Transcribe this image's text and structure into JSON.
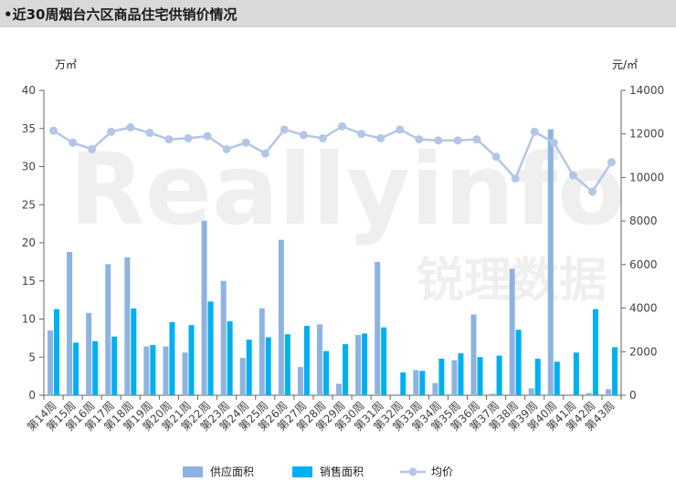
{
  "header": {
    "title": "•近30周烟台六区商品住宅供销价情况"
  },
  "watermark": {
    "text": "Reallyinfo",
    "subtext": "锐理数据"
  },
  "colors": {
    "supply": "#8db3e2",
    "sales": "#00b0f0",
    "price": "#b4c6e7",
    "axis": "#666666",
    "title_bg": "#d9d9d9"
  },
  "chart_data": {
    "type": "bar",
    "title": "",
    "categories": [
      "第14周",
      "第15周",
      "第16周",
      "第17周",
      "第18周",
      "第19周",
      "第20周",
      "第21周",
      "第22周",
      "第23周",
      "第24周",
      "第25周",
      "第26周",
      "第27周",
      "第28周",
      "第29周",
      "第30周",
      "第31周",
      "第32周",
      "第33周",
      "第34周",
      "第35周",
      "第36周",
      "第37周",
      "第38周",
      "第39周",
      "第40周",
      "第41周",
      "第42周",
      "第43周"
    ],
    "y_left": {
      "unit": "万㎡",
      "ylim": [
        0,
        40
      ],
      "ticks": [
        0,
        5,
        10,
        15,
        20,
        25,
        30,
        35,
        40
      ]
    },
    "y_right": {
      "unit": "元/㎡",
      "ylim": [
        0,
        14000
      ],
      "ticks": [
        0,
        2000,
        4000,
        6000,
        8000,
        10000,
        12000,
        14000
      ]
    },
    "series": [
      {
        "name": "供应面积",
        "type": "bar",
        "axis": "left",
        "values": [
          8.5,
          18.8,
          10.8,
          17.2,
          18.1,
          6.4,
          6.4,
          5.6,
          22.9,
          15.0,
          4.9,
          11.4,
          20.4,
          3.7,
          9.3,
          1.5,
          7.9,
          17.5,
          0,
          3.3,
          1.6,
          4.6,
          10.6,
          0.2,
          16.6,
          0.9,
          34.9,
          0,
          0.3,
          0.8
        ]
      },
      {
        "name": "销售面积",
        "type": "bar",
        "axis": "left",
        "values": [
          11.3,
          6.9,
          7.1,
          7.7,
          11.4,
          6.6,
          9.6,
          9.2,
          12.3,
          9.7,
          7.3,
          7.6,
          8.0,
          9.1,
          5.8,
          6.7,
          8.1,
          8.9,
          3.0,
          3.2,
          4.8,
          5.5,
          5.0,
          5.2,
          8.6,
          4.8,
          4.4,
          5.6,
          11.3,
          6.3
        ]
      },
      {
        "name": "均价",
        "type": "line",
        "axis": "right",
        "values": [
          12150,
          11600,
          11300,
          12100,
          12300,
          12050,
          11750,
          11800,
          11900,
          11300,
          11600,
          11100,
          12200,
          11950,
          11800,
          12350,
          12000,
          11800,
          12200,
          11750,
          11700,
          11700,
          11750,
          10950,
          9950,
          12100,
          11600,
          10100,
          9350,
          10700
        ]
      }
    ],
    "grid": false,
    "legend": "bottom-center"
  }
}
